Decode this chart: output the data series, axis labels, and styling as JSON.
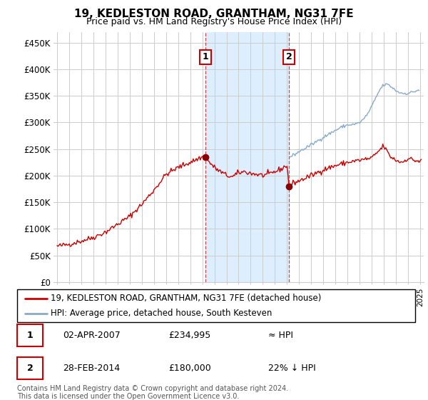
{
  "title": "19, KEDLESTON ROAD, GRANTHAM, NG31 7FE",
  "subtitle": "Price paid vs. HM Land Registry's House Price Index (HPI)",
  "ylabel_ticks": [
    "£0",
    "£50K",
    "£100K",
    "£150K",
    "£200K",
    "£250K",
    "£300K",
    "£350K",
    "£400K",
    "£450K"
  ],
  "ytick_values": [
    0,
    50000,
    100000,
    150000,
    200000,
    250000,
    300000,
    350000,
    400000,
    450000
  ],
  "ylim": [
    0,
    470000
  ],
  "xlim_start": 1994.7,
  "xlim_end": 2025.3,
  "sale1_date": 2007.25,
  "sale1_price": 234995,
  "sale1_label": "1",
  "sale2_date": 2014.17,
  "sale2_price": 180000,
  "sale2_label": "2",
  "highlight_color": "#ddeeff",
  "grid_color": "#cccccc",
  "sale_line_color": "#cc0000",
  "hpi_line_color": "#88aacc",
  "dot_color": "#880000",
  "legend_label_1": "19, KEDLESTON ROAD, GRANTHAM, NG31 7FE (detached house)",
  "legend_label_2": "HPI: Average price, detached house, South Kesteven",
  "table_row1": [
    "1",
    "02-APR-2007",
    "£234,995",
    "≈ HPI"
  ],
  "table_row2": [
    "2",
    "28-FEB-2014",
    "£180,000",
    "22% ↓ HPI"
  ],
  "footnote": "Contains HM Land Registry data © Crown copyright and database right 2024.\nThis data is licensed under the Open Government Licence v3.0.",
  "background_color": "#ffffff"
}
